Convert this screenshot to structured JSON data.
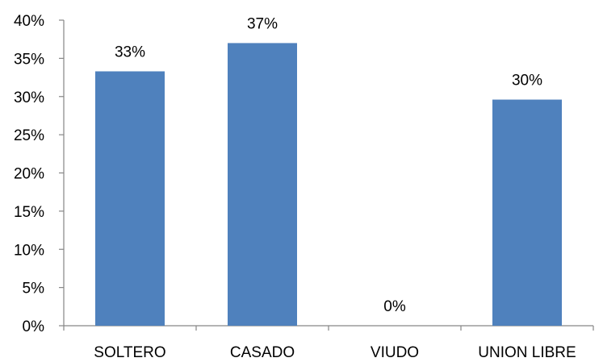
{
  "chart_data": {
    "type": "bar",
    "categories": [
      "SOLTERO",
      "CASADO",
      "VIUDO",
      "UNION LIBRE"
    ],
    "values": [
      33.3,
      37,
      0,
      29.6
    ],
    "data_labels": [
      "33%",
      "37%",
      "0%",
      "30%"
    ],
    "ylim": [
      0,
      40
    ],
    "y_ticks": [
      0,
      5,
      10,
      15,
      20,
      25,
      30,
      35,
      40
    ],
    "y_tick_labels": [
      "0%",
      "5%",
      "10%",
      "15%",
      "20%",
      "25%",
      "30%",
      "35%",
      "40%"
    ],
    "bar_color": "#4F81BD",
    "grid": false,
    "legend": "none"
  }
}
